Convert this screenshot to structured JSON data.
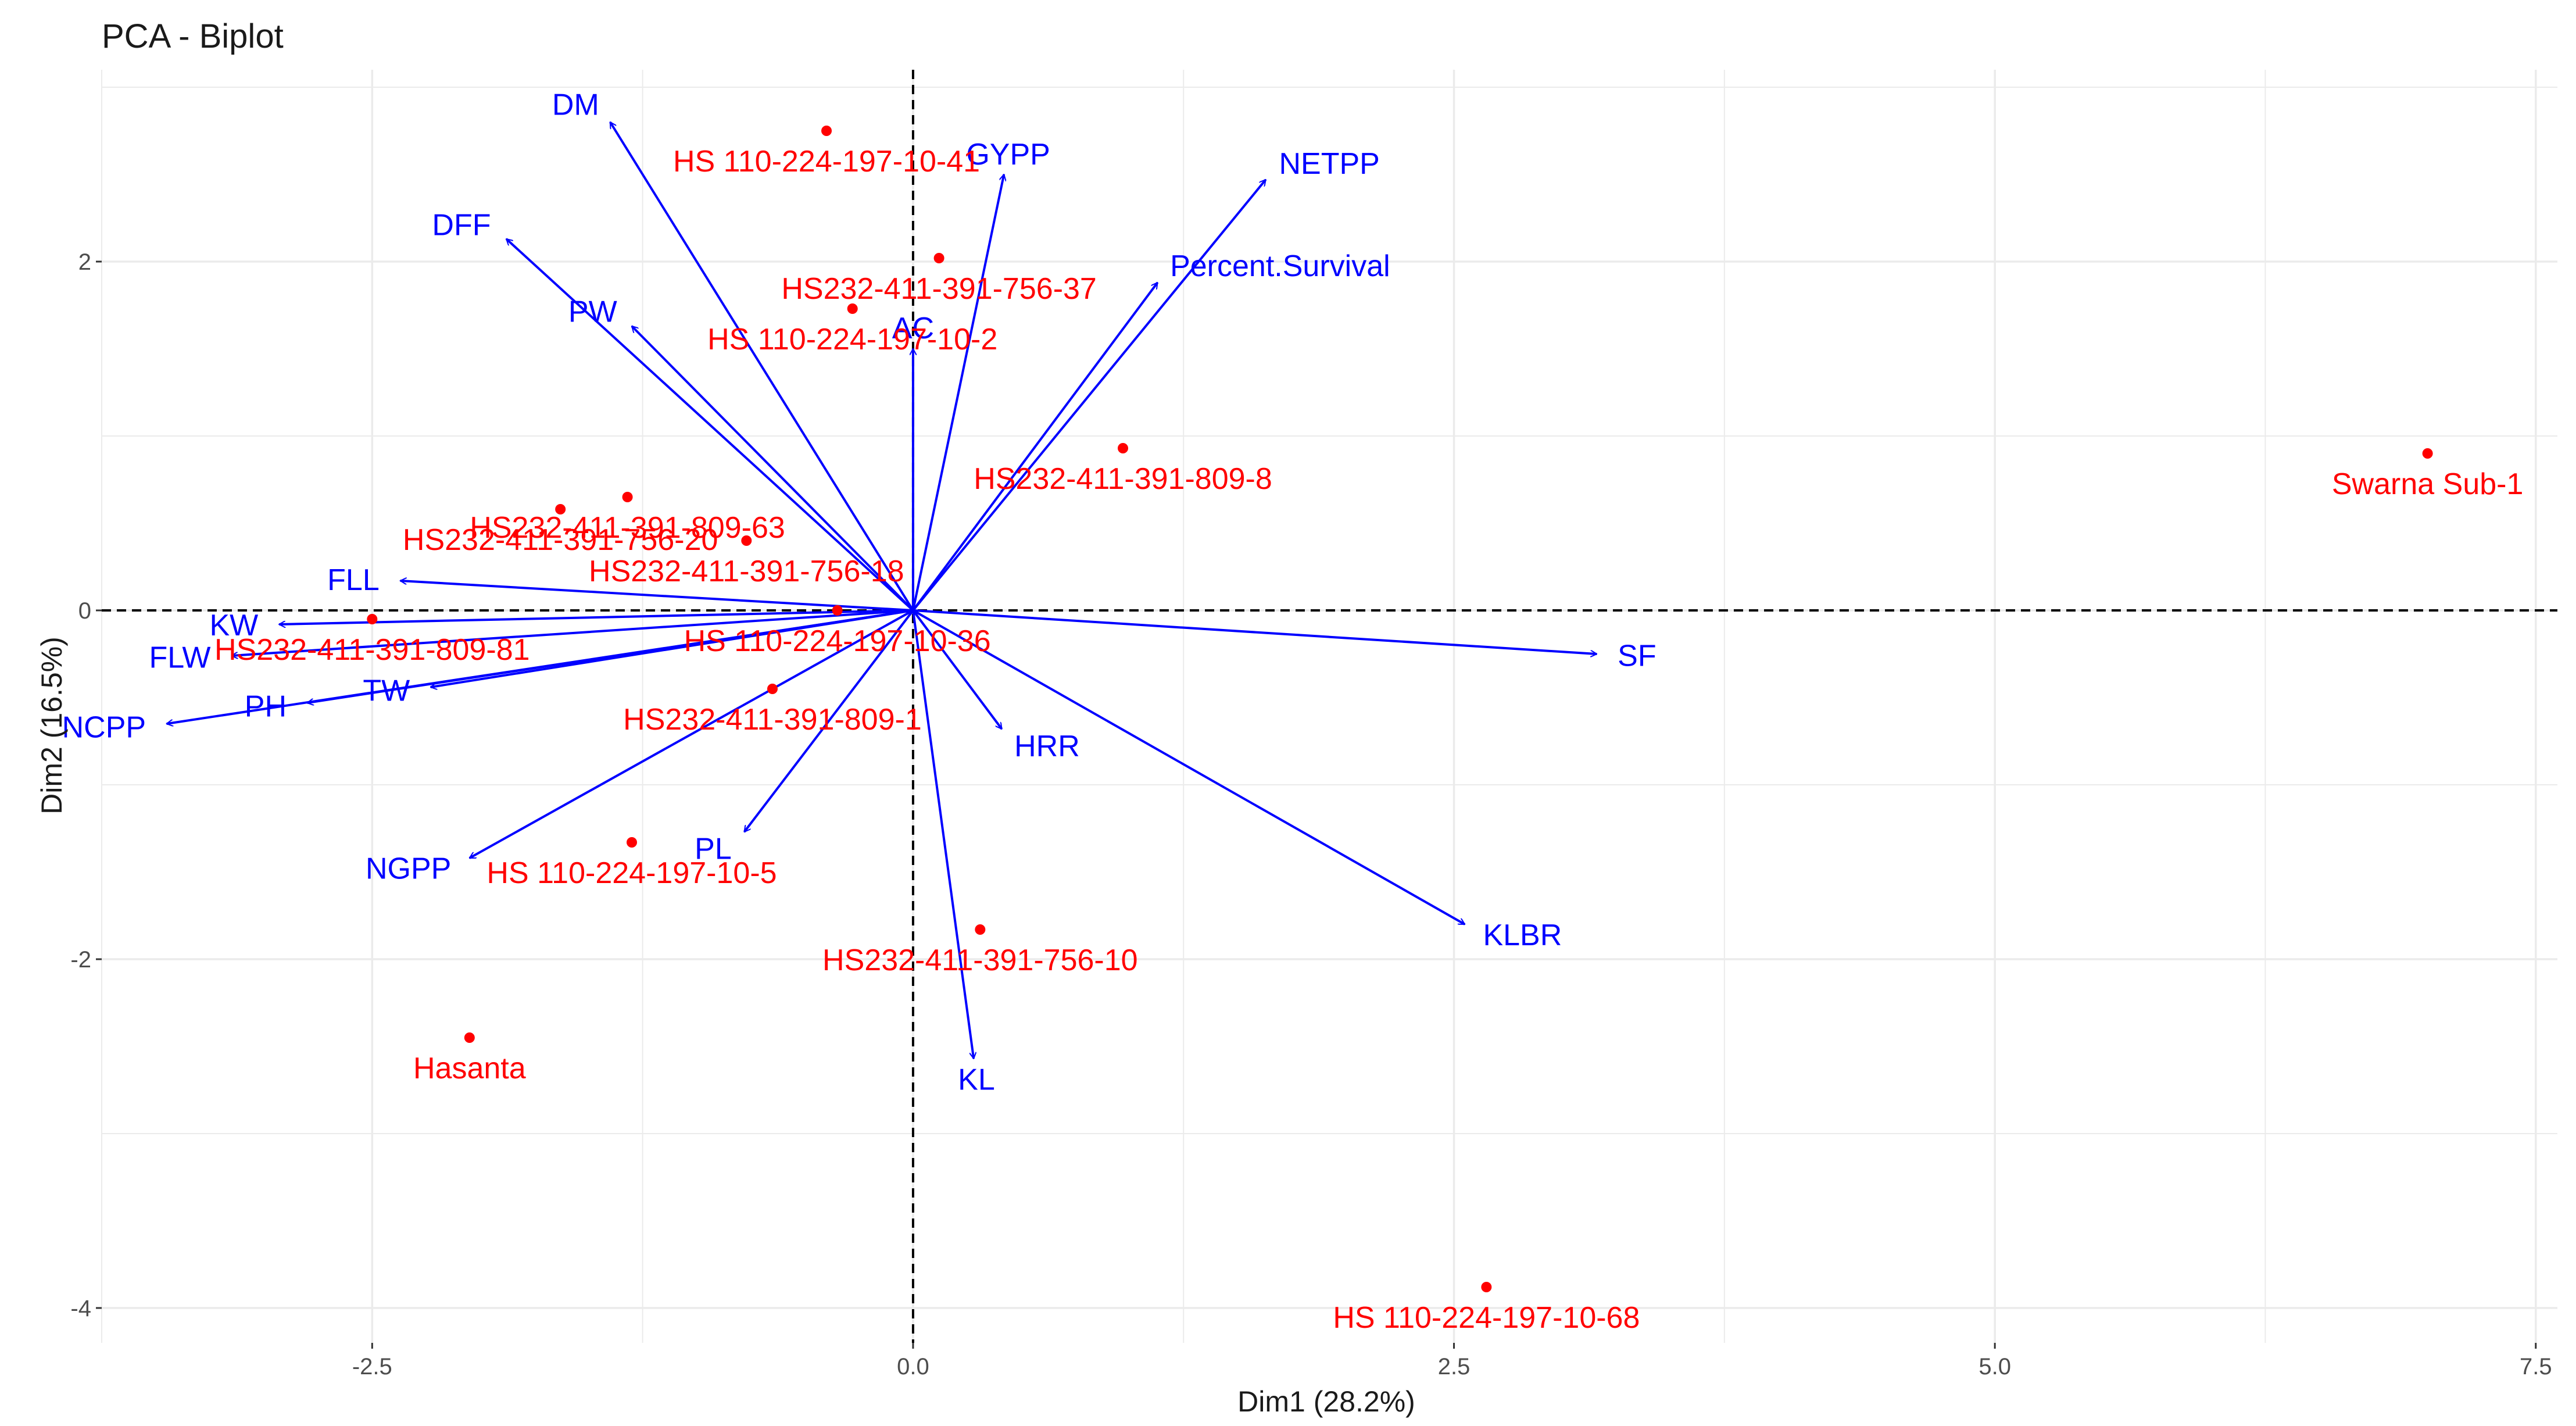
{
  "chart_data": {
    "type": "biplot",
    "title": "PCA - Biplot",
    "xlabel": "Dim1 (28.2%)",
    "ylabel": "Dim2 (16.5%)",
    "xlim": [
      -3.75,
      7.6
    ],
    "ylim": [
      -4.2,
      3.1
    ],
    "xticks": [
      {
        "value": -2.5,
        "label": "-2.5"
      },
      {
        "value": 0,
        "label": "0.0"
      },
      {
        "value": 2.5,
        "label": "2.5"
      },
      {
        "value": 5,
        "label": "5.0"
      },
      {
        "value": 7.5,
        "label": "7.5"
      }
    ],
    "yticks": [
      {
        "value": -4,
        "label": "-4"
      },
      {
        "value": -2,
        "label": "-2"
      },
      {
        "value": 0,
        "label": "0"
      },
      {
        "value": 2,
        "label": "2"
      }
    ],
    "grid": true,
    "colors": {
      "variables": "#0000ff",
      "individuals": "#ff0000",
      "grid": "#ebebeb",
      "refline": "#000000"
    },
    "variables": [
      {
        "name": "DM",
        "x": -1.4,
        "y": 2.8
      },
      {
        "name": "DFF",
        "x": -1.88,
        "y": 2.13
      },
      {
        "name": "PW",
        "x": -1.3,
        "y": 1.63
      },
      {
        "name": "AC",
        "x": 0.0,
        "y": 1.5
      },
      {
        "name": "GYPP",
        "x": 0.42,
        "y": 2.5
      },
      {
        "name": "NETPP",
        "x": 1.63,
        "y": 2.47
      },
      {
        "name": "Percent.Survival",
        "x": 1.13,
        "y": 1.88
      },
      {
        "name": "FLL",
        "x": -2.37,
        "y": 0.17
      },
      {
        "name": "KW",
        "x": -2.93,
        "y": -0.08
      },
      {
        "name": "FLW",
        "x": -3.15,
        "y": -0.26
      },
      {
        "name": "PH",
        "x": -2.8,
        "y": -0.53
      },
      {
        "name": "TW",
        "x": -2.23,
        "y": -0.44
      },
      {
        "name": "NCPP",
        "x": -3.45,
        "y": -0.65
      },
      {
        "name": "NGPP",
        "x": -2.05,
        "y": -1.42
      },
      {
        "name": "PL",
        "x": -0.78,
        "y": -1.27
      },
      {
        "name": "HRR",
        "x": 0.41,
        "y": -0.68
      },
      {
        "name": "KL",
        "x": 0.28,
        "y": -2.57
      },
      {
        "name": "KLBR",
        "x": 2.55,
        "y": -1.8
      },
      {
        "name": "SF",
        "x": 3.16,
        "y": -0.25
      }
    ],
    "individuals": [
      {
        "name": "HS 110-224-197-10-41",
        "x": -0.4,
        "y": 2.75
      },
      {
        "name": "HS232-411-391-756-37",
        "x": 0.12,
        "y": 2.02
      },
      {
        "name": "HS 110-224-197-10-2",
        "x": -0.28,
        "y": 1.73
      },
      {
        "name": "HS232-411-391-809-8",
        "x": 0.97,
        "y": 0.93
      },
      {
        "name": "HS232-411-391-809-63",
        "x": -1.32,
        "y": 0.65
      },
      {
        "name": "HS232-411-391-756-20",
        "x": -1.63,
        "y": 0.58
      },
      {
        "name": "HS232-411-391-756-18",
        "x": -0.77,
        "y": 0.4
      },
      {
        "name": "HS232-411-391-809-81",
        "x": -2.5,
        "y": -0.05
      },
      {
        "name": "HS 110-224-197-10-36",
        "x": -0.35,
        "y": 0.0
      },
      {
        "name": "HS232-411-391-809-1",
        "x": -0.65,
        "y": -0.45
      },
      {
        "name": "HS 110-224-197-10-5",
        "x": -1.3,
        "y": -1.33
      },
      {
        "name": "HS232-411-391-756-10",
        "x": 0.31,
        "y": -1.83
      },
      {
        "name": "Hasanta",
        "x": -2.05,
        "y": -2.45
      },
      {
        "name": "Swarna Sub-1",
        "x": 7.0,
        "y": 0.9
      },
      {
        "name": "HS 110-224-197-10-68",
        "x": 2.65,
        "y": -3.88
      }
    ]
  }
}
